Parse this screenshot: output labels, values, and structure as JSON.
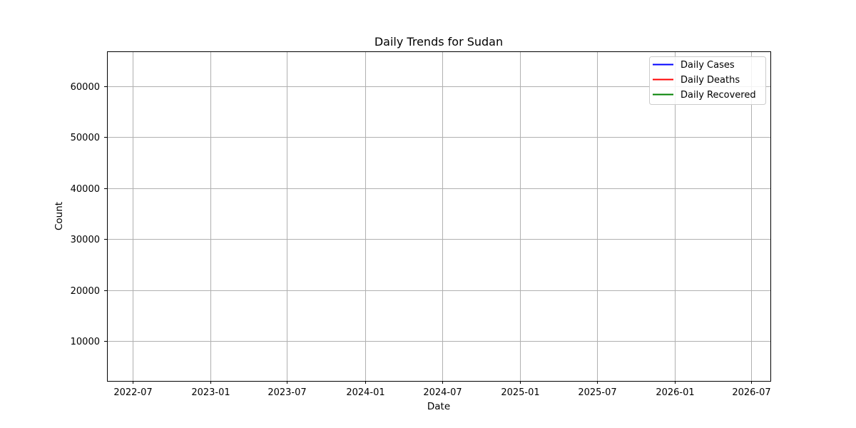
{
  "chart_data": {
    "type": "line",
    "title": "Daily Trends for Sudan",
    "xlabel": "Date",
    "ylabel": "Count",
    "xlim": [
      "2022-05-02",
      "2026-08-15"
    ],
    "ylim": [
      2200,
      66800
    ],
    "x_ticks": [
      {
        "label": "2022-07",
        "date": "2022-07-01"
      },
      {
        "label": "2023-01",
        "date": "2023-01-01"
      },
      {
        "label": "2023-07",
        "date": "2023-07-01"
      },
      {
        "label": "2024-01",
        "date": "2024-01-01"
      },
      {
        "label": "2024-07",
        "date": "2024-07-01"
      },
      {
        "label": "2025-01",
        "date": "2025-01-01"
      },
      {
        "label": "2025-07",
        "date": "2025-07-01"
      },
      {
        "label": "2026-01",
        "date": "2026-01-01"
      },
      {
        "label": "2026-07",
        "date": "2026-07-01"
      }
    ],
    "y_ticks": [
      10000,
      20000,
      30000,
      40000,
      50000,
      60000
    ],
    "grid": true,
    "legend_position": "top-right",
    "series": [
      {
        "name": "Daily Cases",
        "color": "#0000ff",
        "points": []
      },
      {
        "name": "Daily Deaths",
        "color": "#ff0000",
        "points": []
      },
      {
        "name": "Daily Recovered",
        "color": "#008000",
        "points": []
      }
    ]
  }
}
